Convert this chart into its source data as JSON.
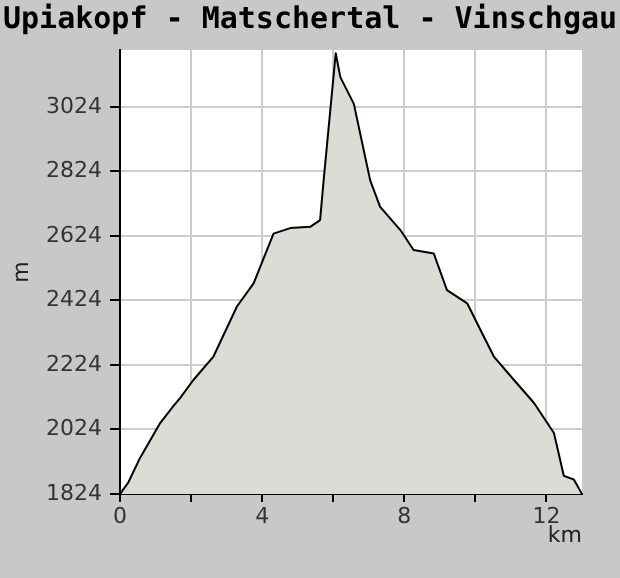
{
  "chart_data": {
    "type": "area",
    "title": "Upiakopf - Matschertal - Vinschgau",
    "xlabel": "km",
    "ylabel": "m",
    "x": [
      0,
      0.23,
      0.56,
      1.13,
      1.5,
      1.69,
      2.07,
      2.63,
      3.29,
      3.76,
      4.32,
      4.79,
      5.35,
      5.63,
      5.73,
      6.07,
      6.2,
      6.58,
      7.04,
      7.32,
      7.89,
      8.26,
      8.83,
      9.2,
      9.77,
      10.14,
      10.52,
      11.08,
      11.65,
      12.21,
      12.49,
      12.77,
      13.0
    ],
    "series": [
      {
        "color": "#dcdbd6",
        "values": [
          1824,
          1859,
          1935,
          2044,
          2096,
          2121,
          2178,
          2250,
          2405,
          2477,
          2631,
          2648,
          2652,
          2673,
          2796,
          3190,
          3116,
          3033,
          2796,
          2714,
          2642,
          2580,
          2569,
          2456,
          2415,
          2333,
          2250,
          2178,
          2106,
          2013,
          1880,
          1869,
          1824
        ]
      }
    ],
    "xlim": [
      0,
      13
    ],
    "xticks": [
      0,
      {
        "value": 2,
        "label": null
      },
      4,
      {
        "value": 6,
        "label": null
      },
      8,
      {
        "value": 10,
        "label": null
      },
      12
    ],
    "ylim": [
      1824,
      3200
    ],
    "yticks": [
      1824,
      2024,
      2224,
      2424,
      2624,
      2824,
      3024
    ],
    "grid": true,
    "legend": false,
    "marker": "none",
    "line_style": "solid"
  }
}
